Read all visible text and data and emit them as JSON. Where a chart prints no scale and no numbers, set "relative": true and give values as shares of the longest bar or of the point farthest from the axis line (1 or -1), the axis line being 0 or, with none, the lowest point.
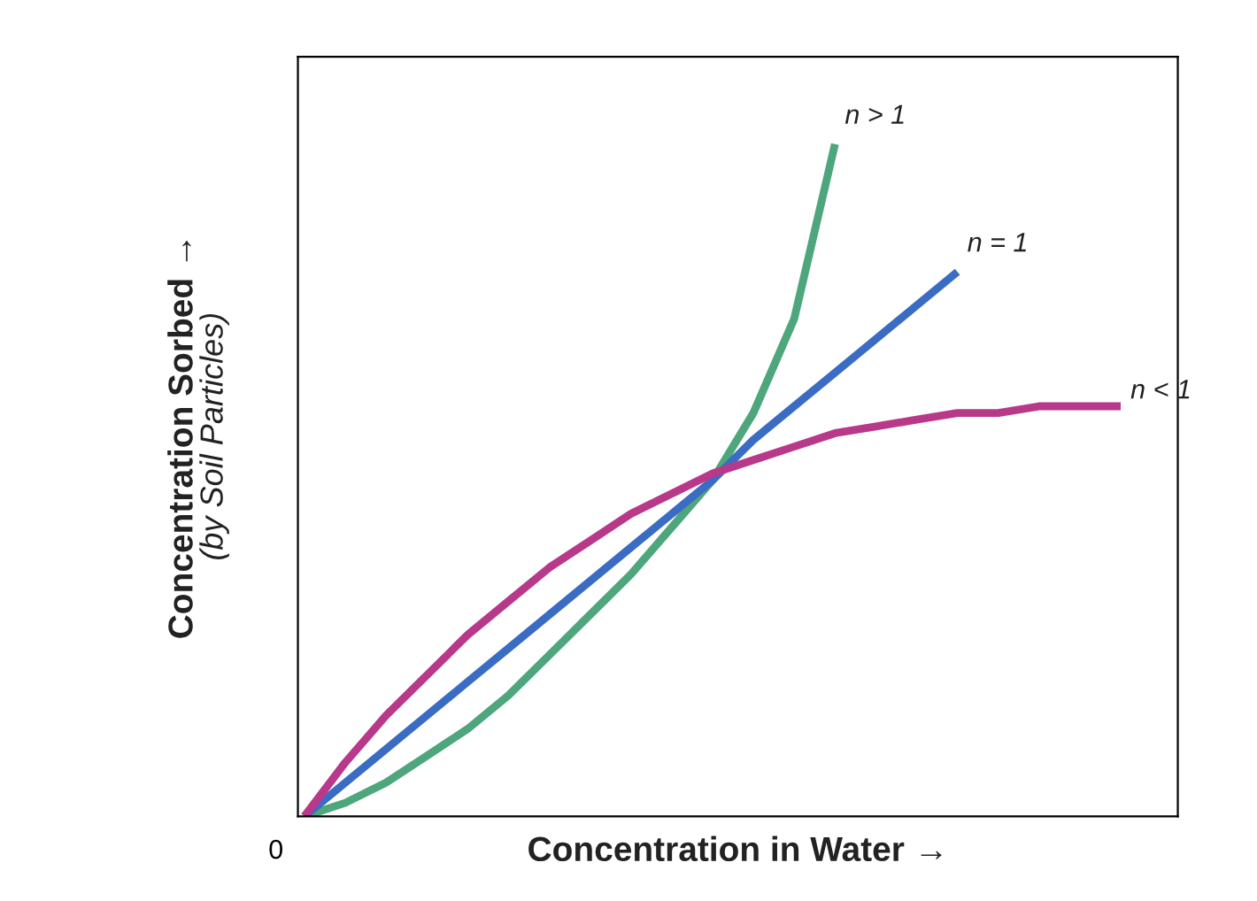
{
  "chart_data": {
    "type": "line",
    "relative": true,
    "xlabel": "Concentration in Water →",
    "ylabel": "Concentration Sorbed →\n(by Soil Particles)",
    "annotations": [
      "0"
    ],
    "categories": [
      null,
      null,
      null,
      null,
      null,
      null,
      null,
      null,
      null,
      null,
      null,
      null,
      null,
      null,
      null,
      null,
      null,
      null,
      null,
      null,
      null
    ],
    "series": [
      {
        "name": "n > 1",
        "color": "#4ea67c",
        "values": [
          0,
          0.02,
          0.05,
          0.09,
          0.13,
          0.18,
          0.24,
          0.3,
          0.36,
          0.43,
          0.5,
          0.6,
          0.74,
          1.0,
          null,
          null,
          null,
          null,
          null,
          null,
          null
        ]
      },
      {
        "name": "n = 1",
        "color": "#3a6cc4",
        "values": [
          0,
          0.05,
          0.1,
          0.15,
          0.2,
          0.25,
          0.3,
          0.35,
          0.4,
          0.45,
          0.5,
          0.56,
          0.61,
          0.66,
          0.71,
          0.76,
          0.81,
          null,
          null,
          null,
          null
        ]
      },
      {
        "name": "n < 1",
        "color": "#b8398a",
        "values": [
          0,
          0.08,
          0.15,
          0.21,
          0.27,
          0.32,
          0.37,
          0.41,
          0.45,
          0.48,
          0.51,
          0.53,
          0.55,
          0.57,
          0.58,
          0.59,
          0.6,
          0.6,
          0.61,
          0.61,
          0.61
        ]
      }
    ],
    "legend": false,
    "marker": "none",
    "line_style": "solid"
  }
}
